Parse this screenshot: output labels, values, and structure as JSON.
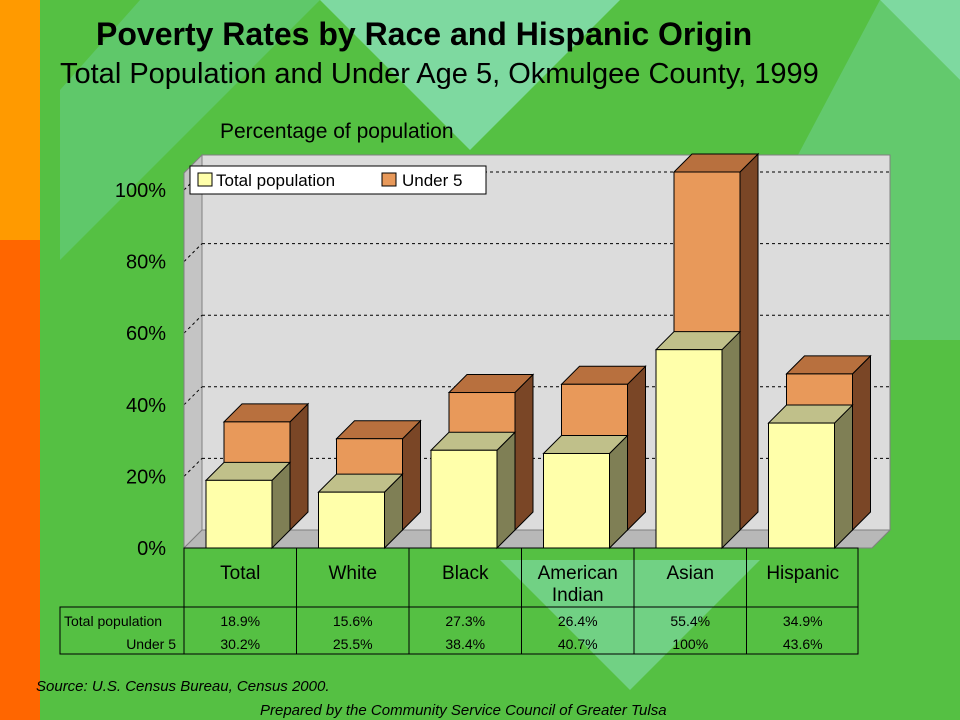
{
  "header": {
    "title": "Poverty Rates by Race and Hispanic Origin",
    "subtitle": "Total Population and Under Age 5, Okmulgee County, 1999"
  },
  "footer": {
    "source": "Source:  U.S. Census Bureau, Census 2000.",
    "prepared": "Prepared by the Community Service Council of Greater Tulsa"
  },
  "chart_data": {
    "type": "bar",
    "ylabel": "Percentage of population",
    "ylim": [
      0,
      100
    ],
    "yticks": [
      "0%",
      "20%",
      "40%",
      "60%",
      "80%",
      "100%"
    ],
    "grid": true,
    "legend_position": "top-left",
    "categories": [
      "Total",
      "White",
      "Black",
      "American Indian",
      "Asian",
      "Hispanic"
    ],
    "category_lines": [
      [
        "Total"
      ],
      [
        "White"
      ],
      [
        "Black"
      ],
      [
        "American",
        "Indian"
      ],
      [
        "Asian"
      ],
      [
        "Hispanic"
      ]
    ],
    "series": [
      {
        "name": "Total population",
        "values": [
          18.9,
          15.6,
          27.3,
          26.4,
          55.4,
          34.9
        ],
        "labels": [
          "18.9%",
          "15.6%",
          "27.3%",
          "26.4%",
          "55.4%",
          "34.9%"
        ],
        "color": "#ffffaa"
      },
      {
        "name": "Under 5",
        "values": [
          30.2,
          25.5,
          38.4,
          40.7,
          100,
          43.6
        ],
        "labels": [
          "30.2%",
          "25.5%",
          "38.4%",
          "40.7%",
          "100%",
          "43.6%"
        ],
        "color": "#e8995a"
      }
    ]
  }
}
